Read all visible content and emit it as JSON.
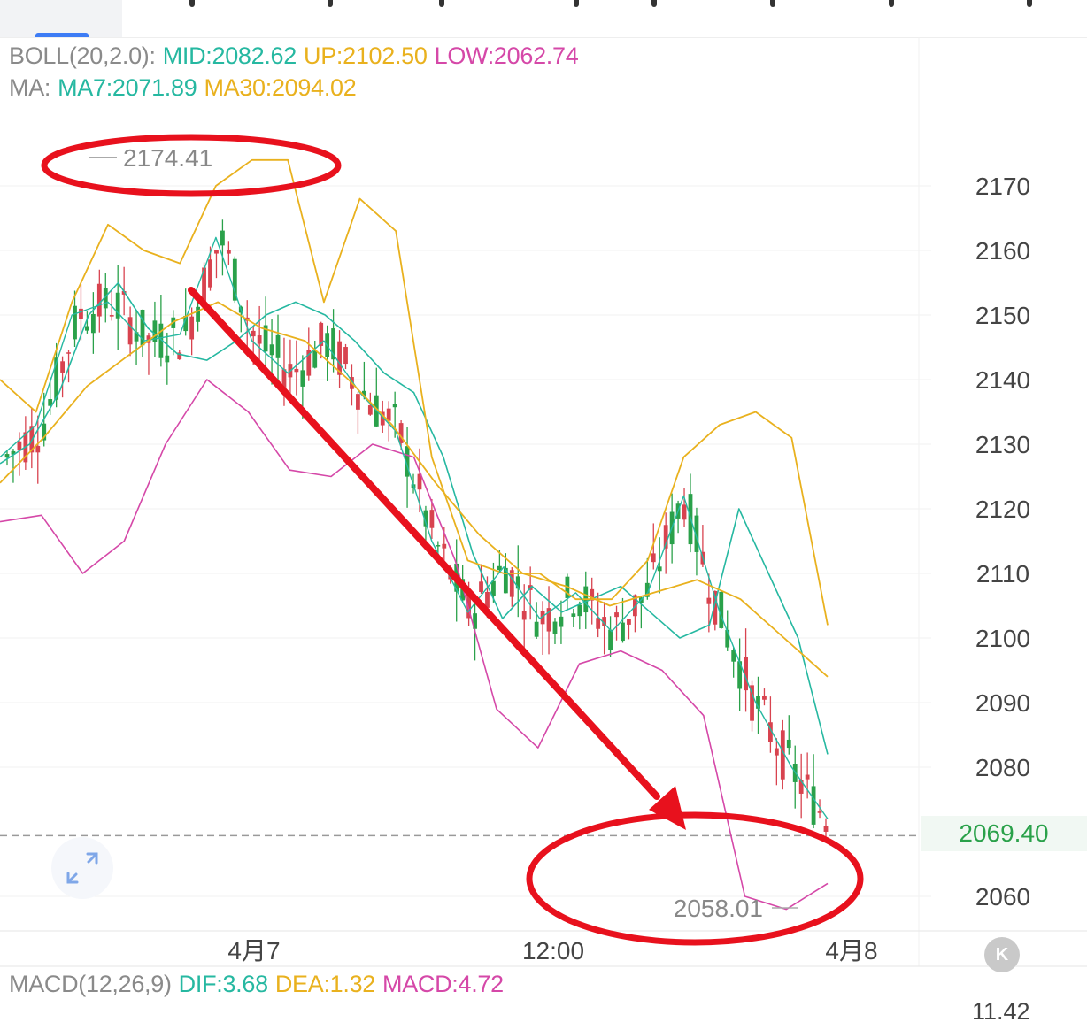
{
  "boll": {
    "label": "BOLL(20,2.0):",
    "mid": "MID:2082.62",
    "up": "UP:2102.50",
    "low": "LOW:2062.74"
  },
  "ma": {
    "label": "MA:",
    "ma7": "MA7:2071.89",
    "ma30": "MA30:2094.02"
  },
  "macd": {
    "label": "MACD(12,26,9)",
    "dif": "DIF:3.68",
    "dea": "DEA:1.32",
    "macd": "MACD:4.72",
    "axis_value": "11.42"
  },
  "current_price": "2069.40",
  "annotations": {
    "high": "2174.41",
    "low": "2058.01"
  },
  "kbutton": "K",
  "colors": {
    "mid": "#26b8a1",
    "up": "#e9b11e",
    "low": "#d548a8",
    "up_candle": "#2aa14a",
    "down_candle": "#d8434f",
    "annotation": "#e8111d"
  },
  "chart_data": {
    "type": "candlestick",
    "y_ticks": [
      2170,
      2160,
      2150,
      2140,
      2130,
      2120,
      2110,
      2100,
      2090,
      2080,
      2060
    ],
    "ylim": [
      2054,
      2175
    ],
    "x_tick_labels": [
      "4月7",
      "12:00",
      "4月8"
    ],
    "high_marker": 2174.41,
    "low_marker": 2058.01,
    "last_price": 2069.4,
    "grid": true,
    "series": [
      {
        "name": "MID",
        "values": [
          2127,
          2130,
          2138,
          2150,
          2155,
          2148,
          2144,
          2143,
          2146,
          2150,
          2152,
          2150,
          2146,
          2141,
          2138,
          2128,
          2113,
          2103,
          2108,
          2104,
          2106,
          2108,
          2104,
          2100,
          2102,
          2120,
          2110,
          2100,
          2082
        ]
      },
      {
        "name": "UP",
        "values": [
          2140,
          2135,
          2152,
          2164,
          2160,
          2158,
          2170,
          2174,
          2174,
          2152,
          2168,
          2163,
          2128,
          2112,
          2110,
          2110,
          2106,
          2106,
          2112,
          2128,
          2133,
          2135,
          2131,
          2102
        ]
      },
      {
        "name": "LOW",
        "values": [
          2118,
          2119,
          2110,
          2115,
          2130,
          2140,
          2135,
          2126,
          2125,
          2130,
          2128,
          2112,
          2089,
          2083,
          2096,
          2098,
          2095,
          2088,
          2060,
          2058,
          2062
        ]
      },
      {
        "name": "MA7",
        "values": [
          2128,
          2133,
          2150,
          2152,
          2146,
          2147,
          2162,
          2146,
          2141,
          2146,
          2138,
          2132,
          2115,
          2104,
          2111,
          2103,
          2107,
          2101,
          2107,
          2122,
          2104,
          2090,
          2080,
          2072
        ]
      },
      {
        "name": "MA30",
        "values": [
          2124,
          2131,
          2139,
          2144,
          2149,
          2152,
          2148,
          2146,
          2140,
          2133,
          2124,
          2116,
          2110,
          2108,
          2105,
          2107,
          2109,
          2106,
          2100,
          2094
        ]
      }
    ]
  }
}
